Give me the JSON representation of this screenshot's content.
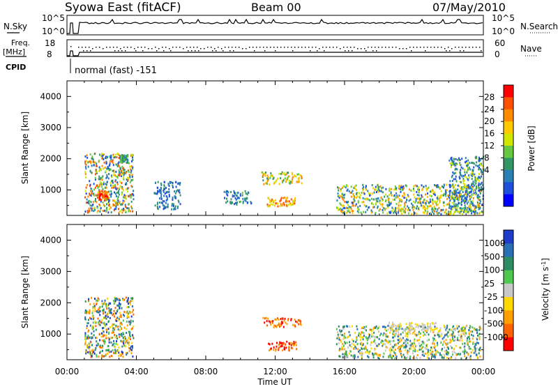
{
  "header": {
    "station": "Syowa East (fitACF)",
    "beam": "Beam 00",
    "date": "07/May/2010"
  },
  "status_panels": {
    "nsky_label": "N.Sky",
    "nsky_ticks": [
      "10^5",
      "10^0"
    ],
    "nsearch_label": "N.Search",
    "nsearch_ticks": [
      "10^5",
      "10^0"
    ],
    "freq_label_1": "Freq.",
    "freq_label_2": "[MHz]",
    "freq_ticks": [
      "18",
      "8"
    ],
    "nave_label": "Nave",
    "nave_ticks": [
      "60",
      "0"
    ],
    "cpid_label": "CPID",
    "cpid_text": "normal (fast) -151"
  },
  "chart_data": [
    {
      "type": "heatmap",
      "title": "Power",
      "ylabel": "Slant Range [km]",
      "xlabel": "Time UT",
      "x_ticks": [
        "00:00",
        "04:00",
        "08:00",
        "12:00",
        "16:00",
        "20:00",
        "00:00"
      ],
      "xlim_hours": [
        0,
        24
      ],
      "y_ticks": [
        1000,
        2000,
        3000,
        4000
      ],
      "ylim": [
        180,
        4500
      ],
      "colorbar_label": "Power [dB]",
      "colorbar_ticks": [
        "28",
        "24",
        "20",
        "16",
        "12",
        "8",
        "4"
      ],
      "colorbar_colors": [
        "#ff0000",
        "#ff5000",
        "#ff8c00",
        "#ffc800",
        "#d2e600",
        "#64c840",
        "#329664",
        "#2a80b4",
        "#1e50dc",
        "#0000ff"
      ],
      "scatter_regions": [
        {
          "t": [
            1.0,
            3.8
          ],
          "r": [
            300,
            2200
          ],
          "level": "mixed-strong"
        },
        {
          "t": [
            1.8,
            2.3
          ],
          "r": [
            700,
            1000
          ],
          "level": "28"
        },
        {
          "t": [
            3.0,
            3.5
          ],
          "r": [
            1900,
            2150
          ],
          "level": "8-16"
        },
        {
          "t": [
            5.0,
            6.5
          ],
          "r": [
            400,
            1300
          ],
          "level": "4-8"
        },
        {
          "t": [
            9.0,
            10.6
          ],
          "r": [
            550,
            1000
          ],
          "level": "4-12"
        },
        {
          "t": [
            11.5,
            13.2
          ],
          "r": [
            500,
            800
          ],
          "level": "16-24"
        },
        {
          "t": [
            11.2,
            13.5
          ],
          "r": [
            1200,
            1600
          ],
          "level": "8-20"
        },
        {
          "t": [
            15.5,
            23.8
          ],
          "r": [
            250,
            1200
          ],
          "level": "mixed"
        },
        {
          "t": [
            22.0,
            24.0
          ],
          "r": [
            300,
            2100
          ],
          "level": "mixed"
        }
      ]
    },
    {
      "type": "heatmap",
      "title": "Velocity",
      "ylabel": "Slant Range [km]",
      "xlabel": "Time UT",
      "x_ticks": [
        "00:00",
        "04:00",
        "08:00",
        "12:00",
        "16:00",
        "20:00",
        "00:00"
      ],
      "xlim_hours": [
        0,
        24
      ],
      "y_ticks": [
        1000,
        2000,
        3000,
        4000
      ],
      "ylim": [
        180,
        4500
      ],
      "colorbar_label": "Velocity [m s-1]",
      "colorbar_ticks": [
        "1000",
        "500",
        "100",
        "25",
        "-25",
        "-100",
        "-500",
        "-1000"
      ],
      "colorbar_colors": [
        "#1e3cc8",
        "#2a6eb4",
        "#2e8c64",
        "#50c850",
        "#c8c8c8",
        "#ffd800",
        "#ffa000",
        "#ff6400",
        "#ff0000"
      ],
      "scatter_regions": [
        {
          "t": [
            1.0,
            3.8
          ],
          "r": [
            300,
            2200
          ],
          "level": "-100 to 500"
        },
        {
          "t": [
            11.5,
            13.2
          ],
          "r": [
            500,
            800
          ],
          "level": "-500"
        },
        {
          "t": [
            11.2,
            13.5
          ],
          "r": [
            1250,
            1550
          ],
          "level": "-500"
        },
        {
          "t": [
            15.5,
            23.8
          ],
          "r": [
            250,
            1300
          ],
          "level": "mixed -100 to 100"
        },
        {
          "t": [
            18.5,
            21.5
          ],
          "r": [
            1100,
            1400
          ],
          "level": "25"
        }
      ]
    }
  ]
}
